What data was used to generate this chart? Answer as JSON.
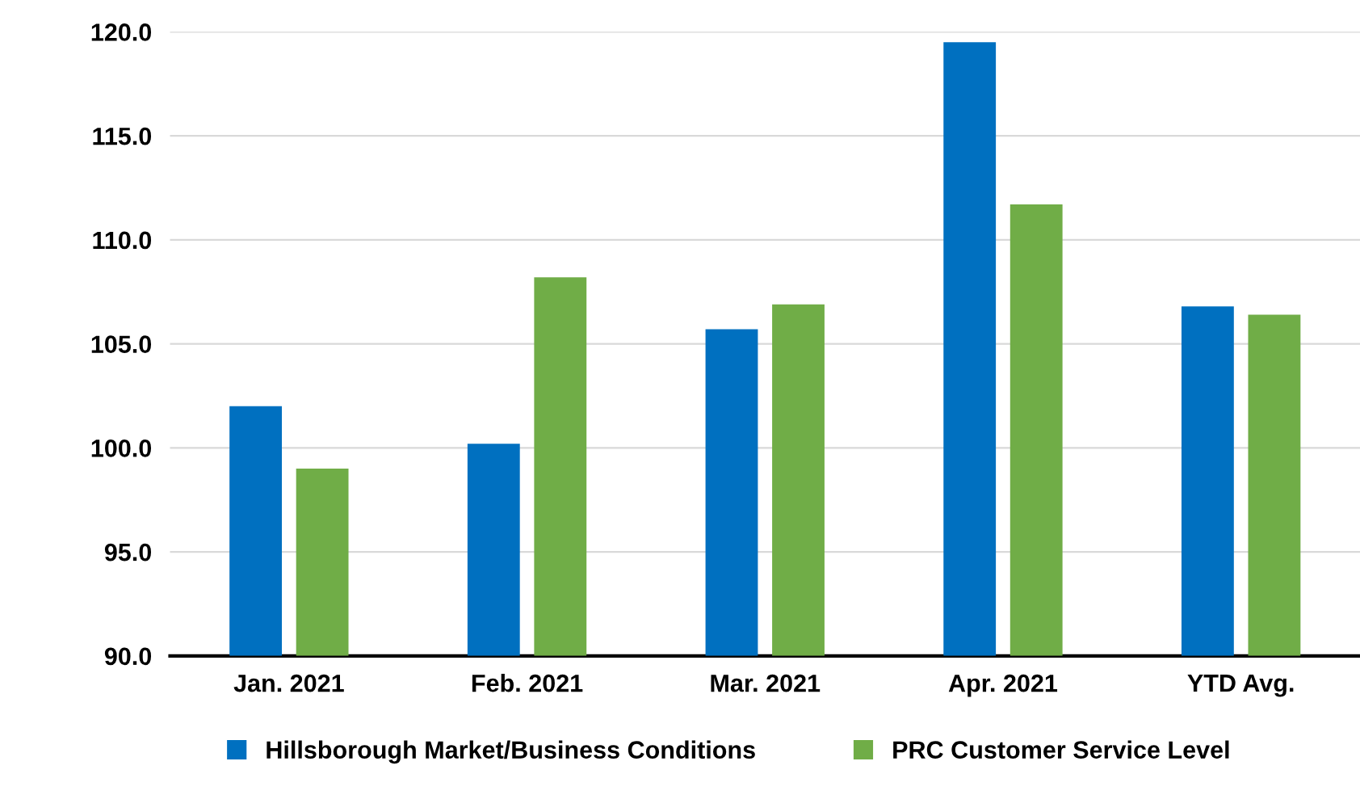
{
  "chart_data": {
    "type": "bar",
    "categories": [
      "Jan. 2021",
      "Feb. 2021",
      "Mar. 2021",
      "Apr. 2021",
      "YTD Avg."
    ],
    "series": [
      {
        "name": "Hillsborough Market/Business Conditions",
        "color": "#0070c0",
        "values": [
          102.0,
          100.2,
          105.7,
          119.5,
          106.8
        ]
      },
      {
        "name": "PRC Customer Service Level",
        "color": "#70ad47",
        "values": [
          99.0,
          108.2,
          106.9,
          111.7,
          106.4
        ]
      }
    ],
    "ylim": [
      90,
      120
    ],
    "yticks": [
      {
        "value": 90,
        "label": "90.0"
      },
      {
        "value": 95,
        "label": "95.0"
      },
      {
        "value": 100,
        "label": "100.0"
      },
      {
        "value": 105,
        "label": "105.0"
      },
      {
        "value": 110,
        "label": "110.0"
      },
      {
        "value": 115,
        "label": "115.0"
      },
      {
        "value": 120,
        "label": "120.0"
      }
    ],
    "grid": "y",
    "legend": "bottom"
  }
}
